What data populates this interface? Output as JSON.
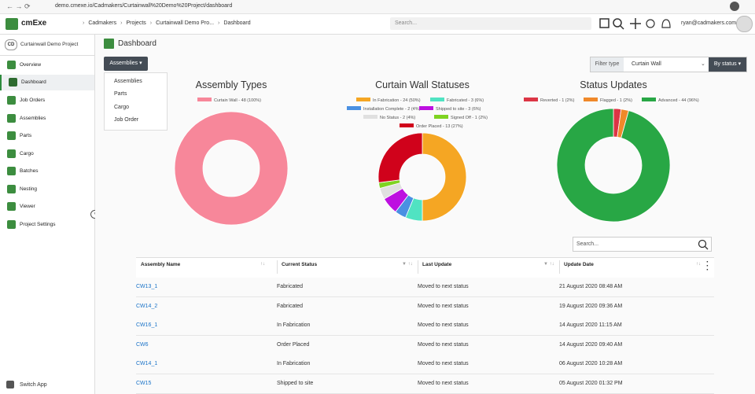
{
  "browser": {
    "url": "demo.cmexe.io/Cadmakers/Curtainwall%20Demo%20Project/dashboard"
  },
  "header": {
    "logo": "cmExe",
    "breadcrumbs": [
      "Cadmakers",
      "Projects",
      "Curtainwall Demo Pro...",
      "Dashboard"
    ],
    "search": "Search...",
    "user": "ryan@cadmakers.com"
  },
  "sidebar": {
    "badge": "CD",
    "project": "Curtainwall Demo Project",
    "items": [
      "Overview",
      "Dashboard",
      "Job Orders",
      "Assemblies",
      "Parts",
      "Cargo",
      "Batches",
      "Nesting",
      "Viewer",
      "Project Settings"
    ],
    "footer": "Switch App"
  },
  "page": {
    "title": "Dashboard",
    "dropdown": "Assemblies",
    "menu": [
      "Assemblies",
      "Parts",
      "Cargo",
      "Job Order"
    ],
    "filter_label": "Filter type",
    "filter_value": "Curtain Wall",
    "group_button": "By status"
  },
  "chart_data": [
    {
      "type": "pie",
      "title": "Assembly Types",
      "categories": [
        "Curtain Wall - 48 (100%)"
      ],
      "values": [
        48
      ],
      "colors": [
        "#f7879a"
      ]
    },
    {
      "type": "pie",
      "title": "Curtain Wall Statuses",
      "categories": [
        "In Fabrication - 24 (50%)",
        "Fabricated - 3 (6%)",
        "Installation Complete - 2 (4%)",
        "Shipped to site - 3 (6%)",
        "No Status - 2 (4%)",
        "Signed Off - 1 (2%)",
        "Order Placed - 13 (27%)"
      ],
      "values": [
        24,
        3,
        2,
        3,
        2,
        1,
        13
      ],
      "colors": [
        "#f5a623",
        "#50e3c2",
        "#4a90e2",
        "#bd10e0",
        "#e0e0e0",
        "#7ed321",
        "#d0021b"
      ]
    },
    {
      "type": "pie",
      "title": "Status Updates",
      "categories": [
        "Reverted - 1 (2%)",
        "Flagged - 1 (2%)",
        "Advanced - 44 (96%)"
      ],
      "values": [
        1,
        1,
        44
      ],
      "colors": [
        "#dc3545",
        "#f0892a",
        "#28a745"
      ]
    }
  ],
  "table": {
    "search": "Search...",
    "columns": [
      "Assembly Name",
      "Current Status",
      "Last Update",
      "Update Date"
    ],
    "rows": [
      [
        "CW13_1",
        "Fabricated",
        "Moved to next status",
        "21 August 2020 08:48 AM"
      ],
      [
        "CW14_2",
        "Fabricated",
        "Moved to next status",
        "19 August 2020 09:36 AM"
      ],
      [
        "CW16_1",
        "In Fabrication",
        "Moved to next status",
        "14 August 2020 11:15 AM"
      ],
      [
        "CW6",
        "Order Placed",
        "Moved to next status",
        "14 August 2020 09:40 AM"
      ],
      [
        "CW14_1",
        "In Fabrication",
        "Moved to next status",
        "06 August 2020 10:28 AM"
      ],
      [
        "CW15",
        "Shipped to site",
        "Moved to next status",
        "05 August 2020 01:32 PM"
      ]
    ]
  }
}
